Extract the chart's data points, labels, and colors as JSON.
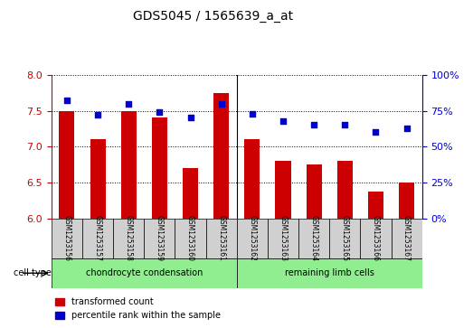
{
  "title": "GDS5045 / 1565639_a_at",
  "samples": [
    "GSM1253156",
    "GSM1253157",
    "GSM1253158",
    "GSM1253159",
    "GSM1253160",
    "GSM1253161",
    "GSM1253162",
    "GSM1253163",
    "GSM1253164",
    "GSM1253165",
    "GSM1253166",
    "GSM1253167"
  ],
  "transformed_count": [
    7.5,
    7.1,
    7.5,
    7.4,
    6.7,
    7.75,
    7.1,
    6.8,
    6.75,
    6.8,
    6.37,
    6.5
  ],
  "percentile_rank": [
    82,
    72,
    80,
    74,
    70,
    80,
    73,
    68,
    65,
    65,
    60,
    63
  ],
  "group1_label": "chondrocyte condensation",
  "group2_label": "remaining limb cells",
  "group1_count": 6,
  "group2_count": 6,
  "ylim_left": [
    6,
    8
  ],
  "ylim_right": [
    0,
    100
  ],
  "yticks_left": [
    6,
    6.5,
    7,
    7.5,
    8
  ],
  "yticks_right": [
    0,
    25,
    50,
    75,
    100
  ],
  "bar_color": "#CC0000",
  "dot_color": "#0000CC",
  "bar_bottom": 6,
  "grid_color": "black",
  "bg_color": "#f0f0f0",
  "left_axis_color": "#CC0000",
  "right_axis_color": "#0000CC",
  "legend_label1": "transformed count",
  "legend_label2": "percentile rank within the sample"
}
